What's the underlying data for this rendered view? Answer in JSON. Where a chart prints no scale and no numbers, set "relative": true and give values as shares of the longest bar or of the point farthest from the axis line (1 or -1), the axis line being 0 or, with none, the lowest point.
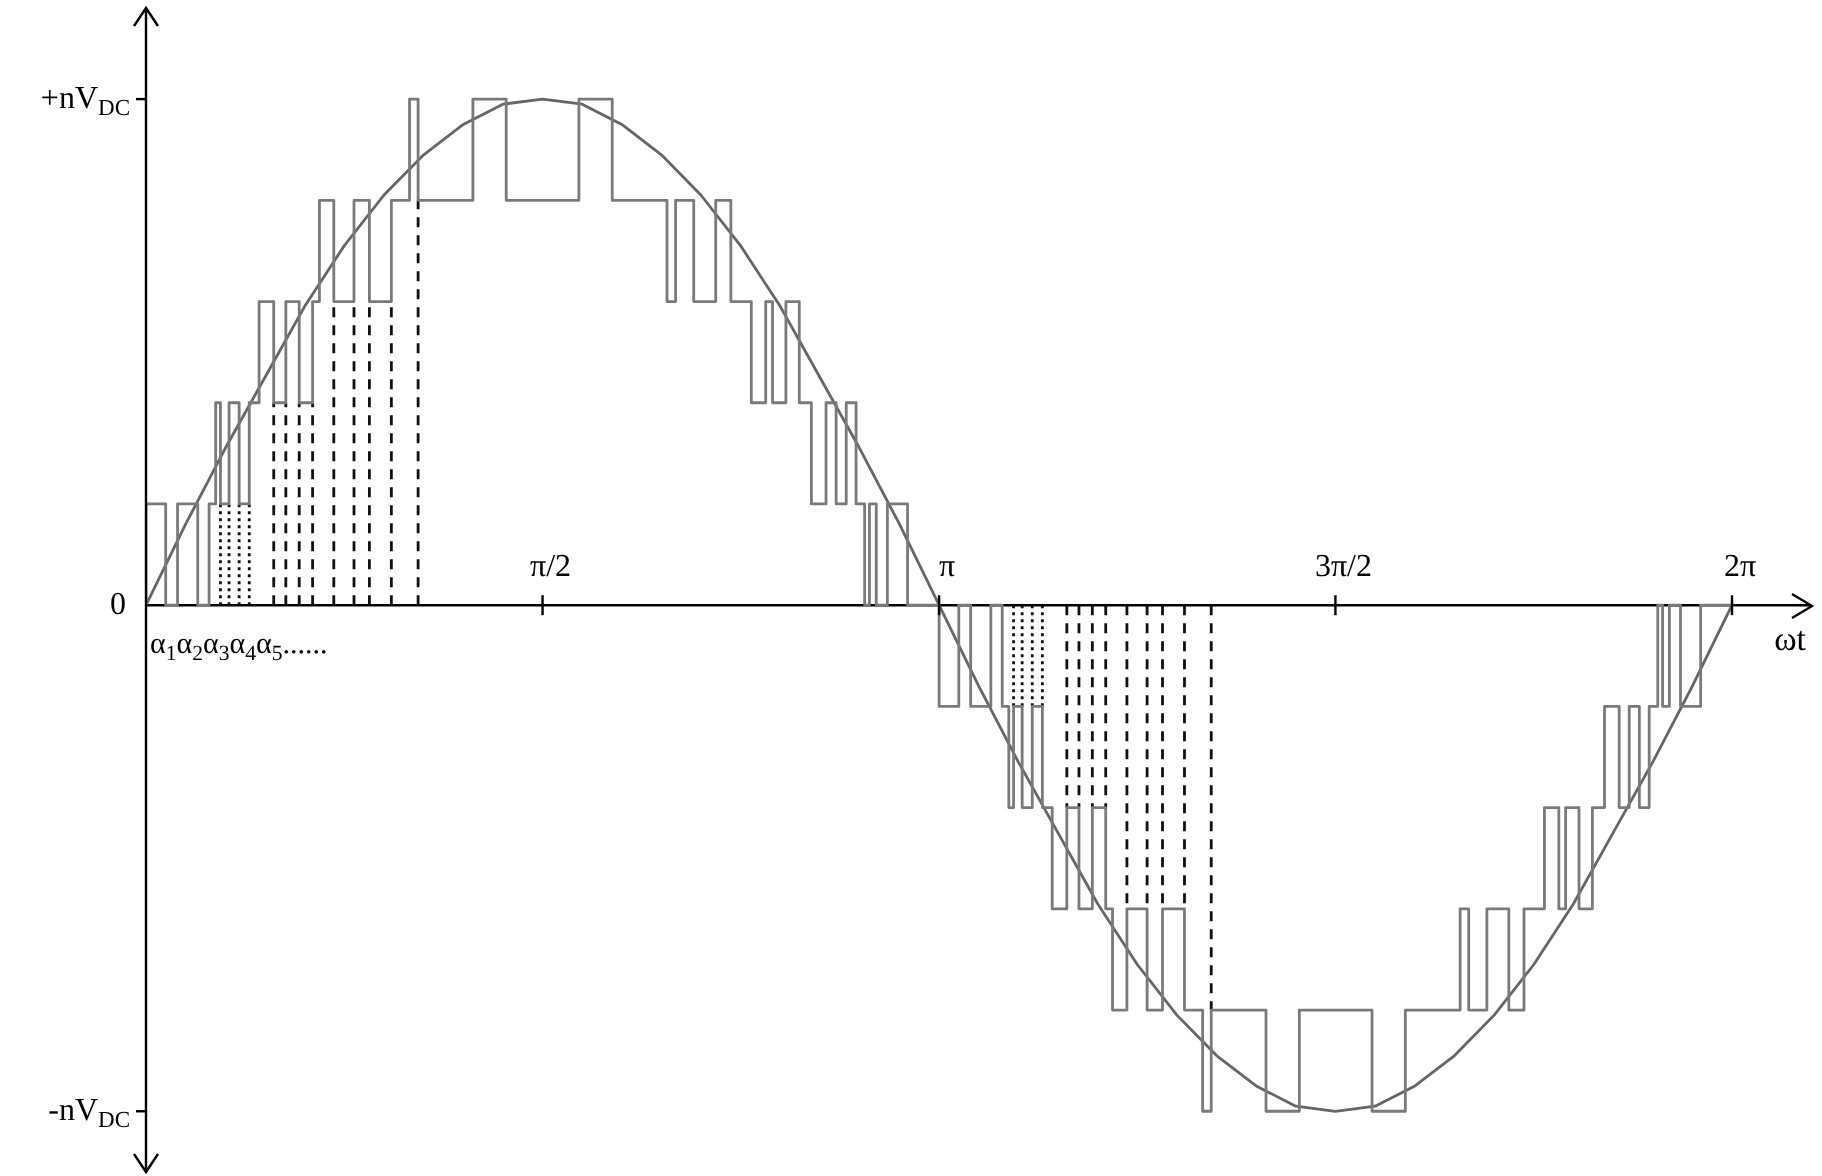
{
  "chart_data": {
    "type": "line",
    "xlabel": "ωt",
    "marker": "none",
    "xlim": [
      0,
      6.6
    ],
    "relative": true,
    "xticks": [
      {
        "value": 1.571,
        "label": "π/2"
      },
      {
        "value": 3.142,
        "label": "π"
      },
      {
        "value": 4.712,
        "label": "3π/2"
      },
      {
        "value": 6.283,
        "label": "2π"
      }
    ],
    "annotations": [
      "+nV$_{DC}$",
      "0",
      "-nV$_{DC}$",
      "α$_{1}$α$_{2}$α$_{3}$α$_{4}$α$_{5}$......"
    ],
    "series": [
      {
        "type": "step",
        "color": "#7a7a7a",
        "x": [
          0,
          0.078,
          0.125,
          0.205,
          0.25,
          0.276,
          0.295,
          0.329,
          0.369,
          0.409,
          0.448,
          0.506,
          0.554,
          0.607,
          0.66,
          0.687,
          0.744,
          0.824,
          0.885,
          0.972,
          1.044,
          1.078,
          1.295,
          1.427,
          1.715,
          1.847,
          2.064,
          2.098,
          2.17,
          2.257,
          2.317,
          2.398,
          2.455,
          2.482,
          2.535,
          2.588,
          2.636,
          2.694,
          2.734,
          2.774,
          2.813,
          2.847,
          2.866,
          2.893,
          2.937,
          3.017,
          3.064,
          3.142,
          3.22,
          3.267,
          3.347,
          3.392,
          3.418,
          3.437,
          3.471,
          3.511,
          3.551,
          3.59,
          3.648,
          3.696,
          3.749,
          3.802,
          3.829,
          3.886,
          3.966,
          4.027,
          4.114,
          4.186,
          4.22,
          4.437,
          4.569,
          4.857,
          4.989,
          5.206,
          5.24,
          5.312,
          5.399,
          5.459,
          5.54,
          5.597,
          5.624,
          5.677,
          5.73,
          5.778,
          5.836,
          5.876,
          5.916,
          5.955,
          5.989,
          6.008,
          6.035,
          6.079,
          6.159,
          6.206,
          6.283
        ],
        "values": [
          0,
          0.2,
          0,
          0.2,
          0,
          0.2,
          0.4,
          0.2,
          0.4,
          0.2,
          0.4,
          0.6,
          0.4,
          0.6,
          0.4,
          0.6,
          0.8,
          0.6,
          0.8,
          0.6,
          0.8,
          1,
          0.8,
          1,
          0.8,
          1,
          0.8,
          0.6,
          0.8,
          0.6,
          0.8,
          0.6,
          0.4,
          0.6,
          0.4,
          0.6,
          0.4,
          0.2,
          0.4,
          0.2,
          0.4,
          0.2,
          0,
          0.2,
          0,
          0.2,
          0,
          0,
          -0.2,
          0,
          -0.2,
          0,
          -0.2,
          -0.4,
          -0.2,
          -0.4,
          -0.2,
          -0.4,
          -0.6,
          -0.4,
          -0.6,
          -0.4,
          -0.6,
          -0.8,
          -0.6,
          -0.8,
          -0.6,
          -0.8,
          -1,
          -0.8,
          -1,
          -0.8,
          -1,
          -0.8,
          -0.6,
          -0.8,
          -0.6,
          -0.8,
          -0.6,
          -0.4,
          -0.6,
          -0.4,
          -0.6,
          -0.4,
          -0.2,
          -0.4,
          -0.2,
          -0.4,
          -0.2,
          0,
          -0.2,
          0,
          -0.2,
          0,
          0
        ]
      },
      {
        "type": "line",
        "color": "#666666",
        "x": [
          0,
          0.157,
          0.314,
          0.471,
          0.628,
          0.785,
          0.942,
          1.1,
          1.257,
          1.414,
          1.571,
          1.728,
          1.885,
          2.042,
          2.199,
          2.356,
          2.513,
          2.67,
          2.827,
          2.985,
          3.142,
          3.299,
          3.456,
          3.613,
          3.77,
          3.927,
          4.084,
          4.241,
          4.398,
          4.555,
          4.712,
          4.869,
          5.027,
          5.184,
          5.341,
          5.498,
          5.655,
          5.812,
          5.969,
          6.126,
          6.283
        ],
        "values": [
          0,
          0.16,
          0.31,
          0.45,
          0.59,
          0.71,
          0.81,
          0.89,
          0.95,
          0.99,
          1,
          0.99,
          0.95,
          0.89,
          0.81,
          0.71,
          0.59,
          0.45,
          0.31,
          0.16,
          0,
          -0.16,
          -0.31,
          -0.45,
          -0.59,
          -0.71,
          -0.81,
          -0.89,
          -0.95,
          -0.99,
          -1,
          -0.99,
          -0.95,
          -0.89,
          -0.81,
          -0.71,
          -0.59,
          -0.45,
          -0.31,
          -0.16,
          0
        ]
      },
      {
        "type": "line",
        "color": "#111111",
        "line_style": "dotted",
        "x": [
          0.295,
          0.295,
          null,
          0.329,
          0.329,
          null,
          0.369,
          0.369,
          null,
          0.409,
          0.409,
          null,
          3.437,
          3.437,
          null,
          3.471,
          3.471,
          null,
          3.511,
          3.511,
          null,
          3.551,
          3.551
        ],
        "values": [
          0,
          0.2,
          null,
          0,
          0.2,
          null,
          0,
          0.2,
          null,
          0,
          0.2,
          null,
          0,
          -0.2,
          null,
          0,
          -0.2,
          null,
          0,
          -0.2,
          null,
          0,
          -0.2
        ]
      },
      {
        "type": "line",
        "color": "#111111",
        "line_style": "dashed",
        "x": [
          0.506,
          0.506,
          null,
          0.554,
          0.554,
          null,
          0.607,
          0.607,
          null,
          0.66,
          0.66,
          null,
          0.744,
          0.744,
          null,
          0.824,
          0.824,
          null,
          0.885,
          0.885,
          null,
          0.972,
          0.972,
          null,
          1.078,
          1.078,
          null,
          3.648,
          3.648,
          null,
          3.696,
          3.696,
          null,
          3.749,
          3.749,
          null,
          3.802,
          3.802,
          null,
          3.886,
          3.886,
          null,
          3.966,
          3.966,
          null,
          4.027,
          4.027,
          null,
          4.114,
          4.114,
          null,
          4.22,
          4.22
        ],
        "values": [
          0,
          0.4,
          null,
          0,
          0.4,
          null,
          0,
          0.4,
          null,
          0,
          0.4,
          null,
          0,
          0.6,
          null,
          0,
          0.6,
          null,
          0,
          0.6,
          null,
          0,
          0.6,
          null,
          0,
          0.8,
          null,
          0,
          -0.4,
          null,
          0,
          -0.4,
          null,
          0,
          -0.4,
          null,
          0,
          -0.4,
          null,
          0,
          -0.6,
          null,
          0,
          -0.6,
          null,
          0,
          -0.6,
          null,
          0,
          -0.6,
          null,
          0,
          -0.8
        ]
      }
    ]
  }
}
